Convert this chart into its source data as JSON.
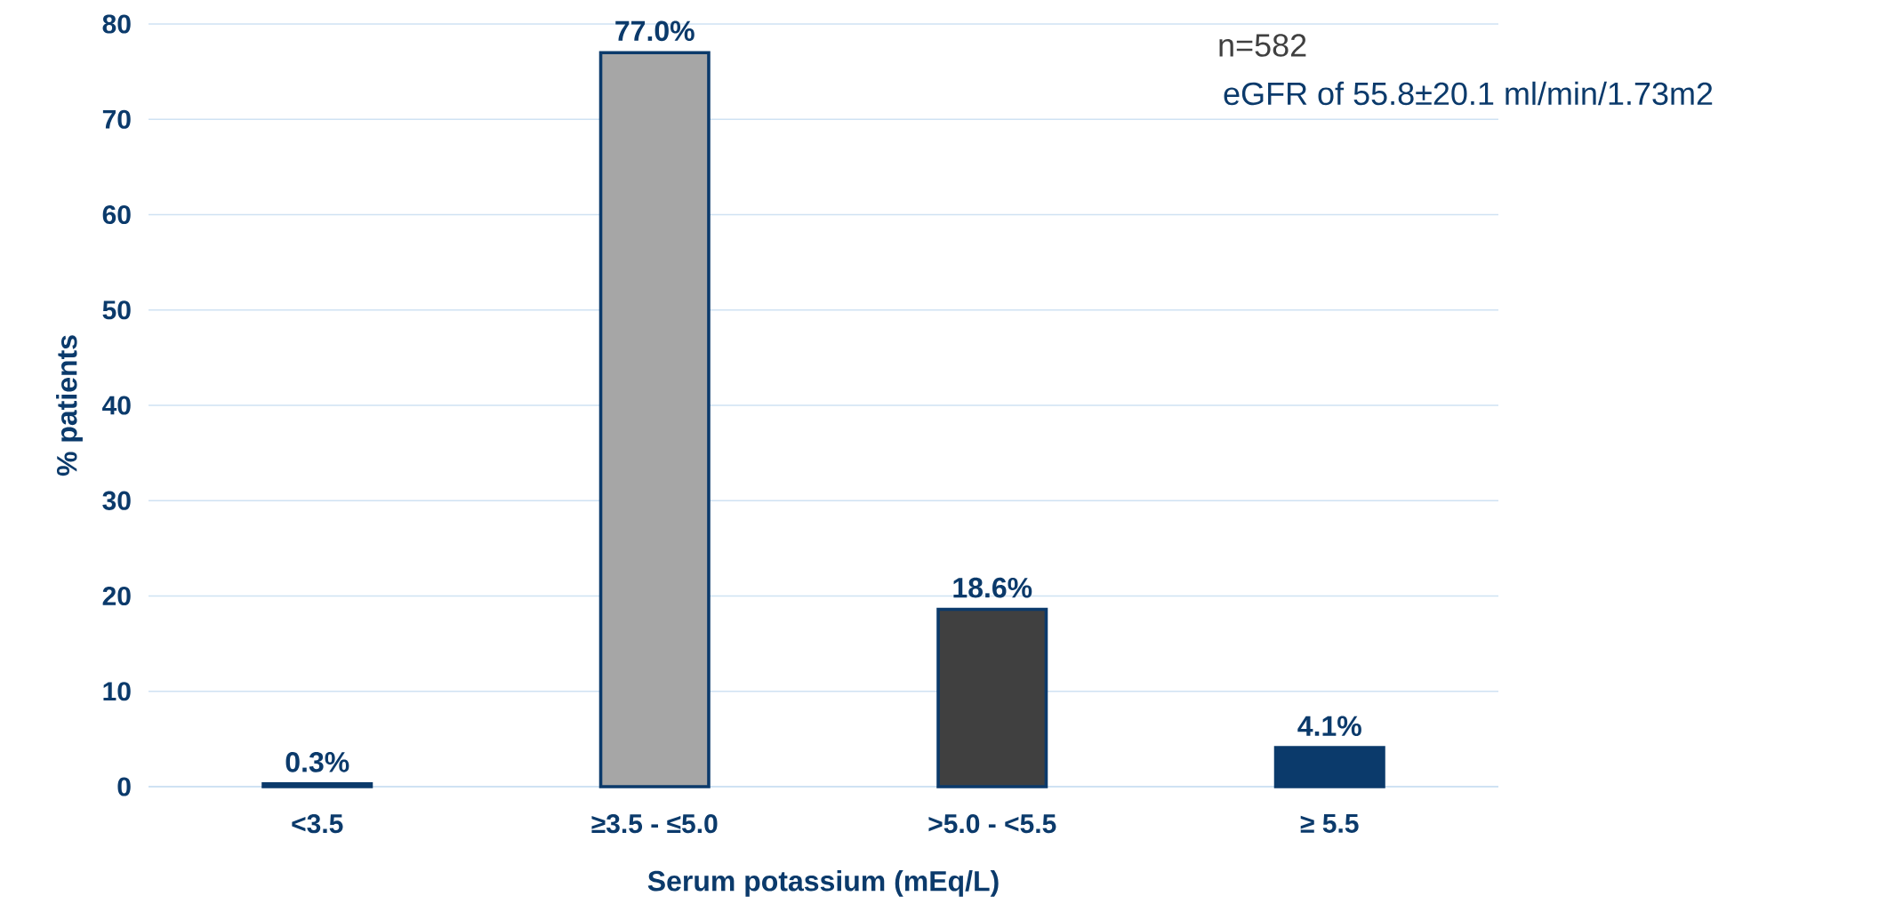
{
  "chart_data": {
    "type": "bar",
    "xlabel": "Serum potassium (mEq/L)",
    "ylabel": "% patients",
    "categories": [
      "<3.5",
      "≥3.5 - ≤5.0",
      ">5.0 - <5.5",
      "≥ 5.5"
    ],
    "values": [
      0.3,
      77.0,
      18.6,
      4.1
    ],
    "colors": [
      "#0b3a6b",
      "#a6a6a6",
      "#404040",
      "#0b3a6b"
    ],
    "value_labels": [
      "0.3%",
      "77.0%",
      "18.6%",
      "4.1%"
    ],
    "ylim": [
      0,
      80
    ],
    "yticks": [
      0,
      10,
      20,
      30,
      40,
      50,
      60,
      70,
      80
    ],
    "grid": "y",
    "annotations": [
      "n=582",
      "eGFR of 55.8±20.1 ml/min/1.73m2"
    ]
  }
}
